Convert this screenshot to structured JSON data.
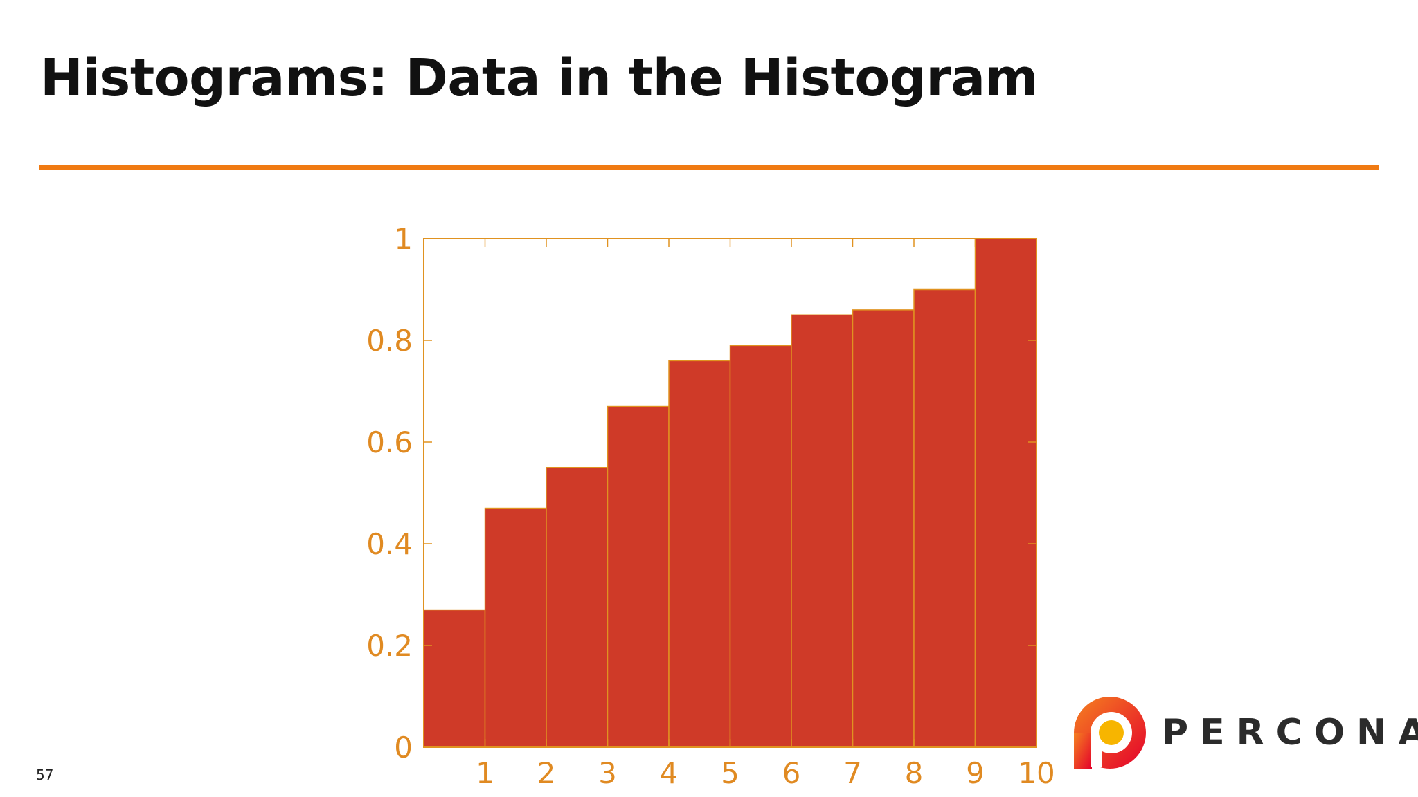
{
  "slide": {
    "title": "Histograms: Data in the Histogram",
    "page_number": "57"
  },
  "logo": {
    "text": "PERCONA"
  },
  "colors": {
    "accent": "#f07a12",
    "bar_fill": "#cf3a28",
    "axis": "#e09220",
    "tick_text": "#e08a22"
  },
  "chart_data": {
    "type": "bar",
    "bins": [
      [
        0,
        1
      ],
      [
        1,
        2
      ],
      [
        2,
        3
      ],
      [
        3,
        4
      ],
      [
        4,
        5
      ],
      [
        5,
        6
      ],
      [
        6,
        7
      ],
      [
        7,
        8
      ],
      [
        8,
        9
      ],
      [
        9,
        10
      ]
    ],
    "values": [
      0.27,
      0.47,
      0.55,
      0.67,
      0.76,
      0.79,
      0.85,
      0.86,
      0.9,
      1.0
    ],
    "xticks": [
      "1",
      "2",
      "3",
      "4",
      "5",
      "6",
      "7",
      "8",
      "9",
      "10"
    ],
    "yticks": [
      "0",
      "0.2",
      "0.4",
      "0.6",
      "0.8",
      "1"
    ],
    "xlim": [
      0,
      10
    ],
    "ylim": [
      0,
      1
    ],
    "title": "",
    "xlabel": "",
    "ylabel": "",
    "grid": false,
    "legend": "none"
  }
}
